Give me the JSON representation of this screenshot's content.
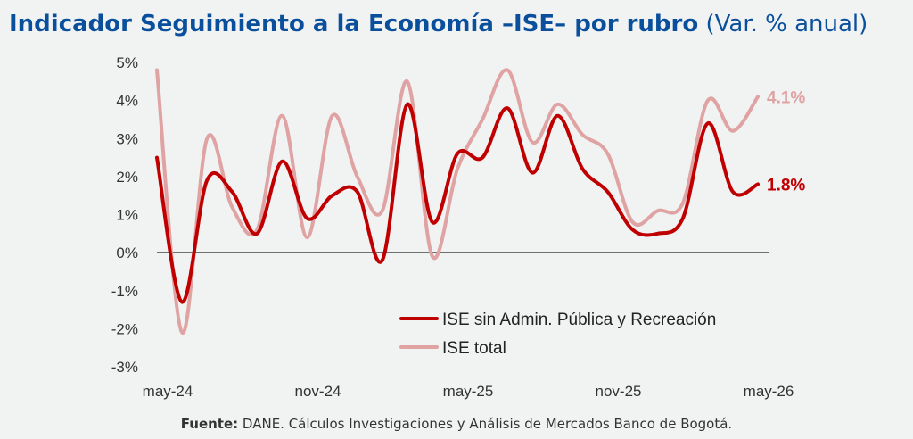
{
  "title": {
    "main": "Indicador Seguimiento a la Economía –ISE– por rubro",
    "sub": "(Var. % anual)"
  },
  "source": {
    "lead": "Fuente:",
    "text": " DANE. Cálculos Investigaciones y Análisis de Mercados Banco de Bogotá."
  },
  "colors": {
    "series_dark": "#c00000",
    "series_light": "#e0a3a3",
    "zero_line": "#222222"
  },
  "chart_data": {
    "type": "line",
    "title": "Indicador Seguimiento a la Economía –ISE– por rubro",
    "subtitle": "(Var. % anual)",
    "ylim": [
      -3,
      5
    ],
    "yticks": [
      -3,
      -2,
      -1,
      0,
      1,
      2,
      3,
      4,
      5
    ],
    "ytick_labels": [
      "-3%",
      "-2%",
      "-1%",
      "0%",
      "1%",
      "2%",
      "3%",
      "4%",
      "5%"
    ],
    "xticks": [
      "may-24",
      "nov-24",
      "may-25",
      "nov-25",
      "may-26"
    ],
    "categories": [
      "may-24",
      "jun-24",
      "jul-24",
      "ago-24",
      "sep-24",
      "oct-24",
      "nov-24",
      "dic-24",
      "ene-25",
      "feb-25",
      "mar-25",
      "abr-25",
      "may-25",
      "jun-25",
      "jul-25",
      "ago-25",
      "sep-25",
      "oct-25",
      "nov-25",
      "dic-25",
      "ene-26",
      "feb-26",
      "mar-26",
      "abr-26",
      "may-26"
    ],
    "grid": false,
    "legend_position": "bottom-right",
    "series": [
      {
        "name": "ISE sin Admin. Pública y Recreación",
        "color": "#c00000",
        "end_label": "1.8%",
        "values": [
          2.5,
          -1.3,
          1.9,
          1.6,
          0.5,
          2.4,
          0.9,
          1.5,
          1.6,
          -0.2,
          3.9,
          0.8,
          2.6,
          2.5,
          3.8,
          2.1,
          3.6,
          2.2,
          1.6,
          0.6,
          0.5,
          0.9,
          3.4,
          1.6,
          1.8
        ]
      },
      {
        "name": "ISE total",
        "color": "#e0a3a3",
        "end_label": "4.1%",
        "values": [
          4.8,
          -2.1,
          3.0,
          1.2,
          0.6,
          3.6,
          0.4,
          3.6,
          2.0,
          1.1,
          4.5,
          -0.1,
          2.2,
          3.5,
          4.8,
          2.9,
          3.9,
          3.1,
          2.6,
          0.8,
          1.1,
          1.3,
          4.0,
          3.2,
          4.1
        ]
      }
    ]
  }
}
